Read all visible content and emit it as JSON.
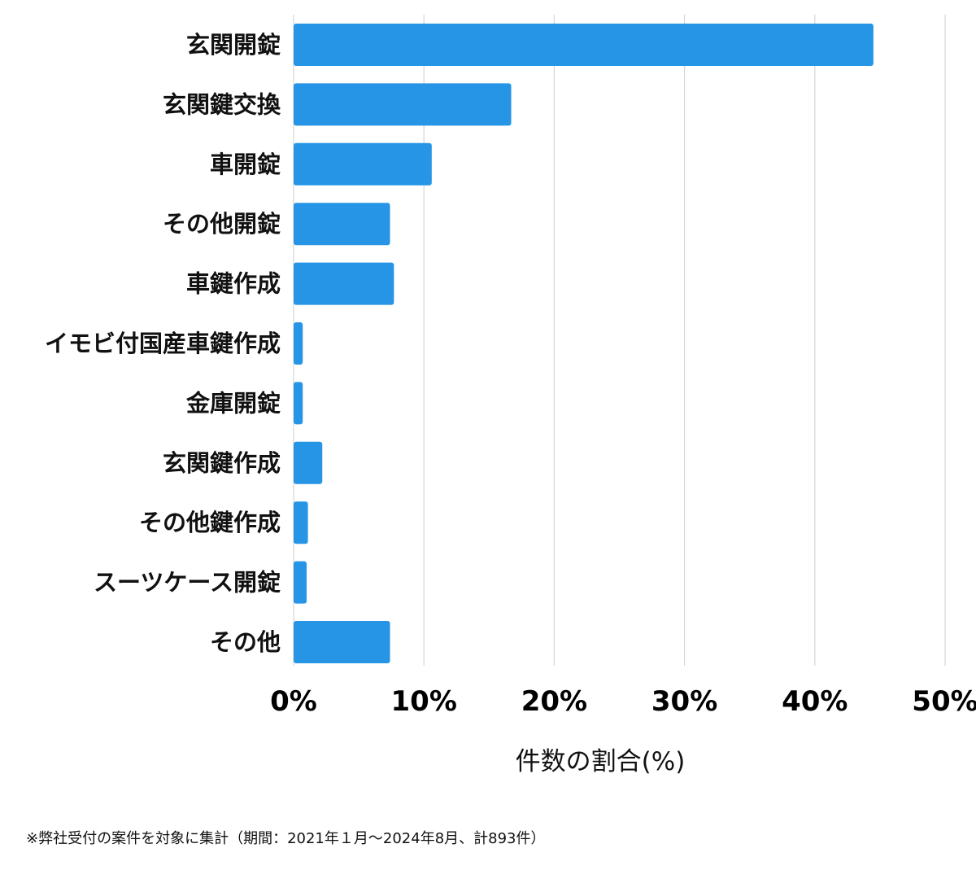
{
  "chart_data": {
    "type": "bar",
    "orientation": "horizontal",
    "categories": [
      "玄関開錠",
      "玄関鍵交換",
      "車開錠",
      "その他開錠",
      "車鍵作成",
      "イモビ付国産車鍵作成",
      "金庫開錠",
      "玄関鍵作成",
      "その他鍵作成",
      "スーツケース開錠",
      "その他"
    ],
    "values": [
      44.5,
      16.7,
      10.6,
      7.4,
      7.7,
      0.7,
      0.7,
      2.2,
      1.1,
      1.0,
      7.4
    ],
    "xlim": [
      0,
      50
    ],
    "xticks": [
      0,
      10,
      20,
      30,
      40,
      50
    ],
    "tick_labels": [
      "0%",
      "10%",
      "20%",
      "30%",
      "40%",
      "50%"
    ],
    "xlabel": "件数の割合(%)",
    "ylabel": "",
    "title": "",
    "grid": "vertical",
    "bar_color": "#2695e6"
  },
  "footnote": "※弊社受付の案件を対象に集計（期間：2021年１月〜2024年8月、計893件）"
}
